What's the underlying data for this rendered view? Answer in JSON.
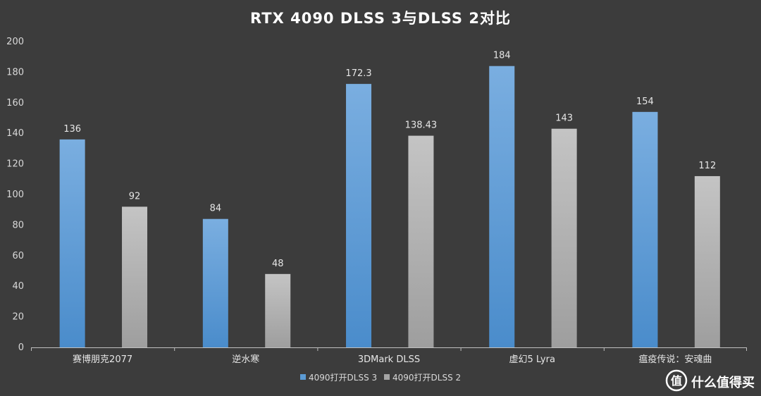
{
  "title": "RTX 4090 DLSS 3与DLSS 2对比",
  "watermark": "什么值得买",
  "chart_data": {
    "type": "bar",
    "categories": [
      "赛博朋克2077",
      "逆水寒",
      "3DMark DLSS",
      "虚幻5 Lyra",
      "瘟疫传说：安魂曲"
    ],
    "series": [
      {
        "name": "4090打开DLSS 3",
        "values": [
          136,
          84,
          172.3,
          184,
          154
        ],
        "labels": [
          "136",
          "84",
          "172.3",
          "184",
          "154"
        ],
        "color": "#5b9bd5"
      },
      {
        "name": "4090打开DLSS 2",
        "values": [
          92,
          48,
          138.43,
          143,
          112
        ],
        "labels": [
          "92",
          "48",
          "138.43",
          "143",
          "112"
        ],
        "color": "#a5a5a5"
      }
    ],
    "ylim": [
      0,
      200
    ],
    "yticks": [
      "0",
      "20",
      "40",
      "60",
      "80",
      "100",
      "120",
      "140",
      "160",
      "180",
      "200"
    ],
    "xlabel": "",
    "ylabel": "",
    "grid": false,
    "legend_position": "bottom"
  },
  "colors": {
    "background": "#3c3c3c",
    "axis": "#bfbfbf"
  }
}
